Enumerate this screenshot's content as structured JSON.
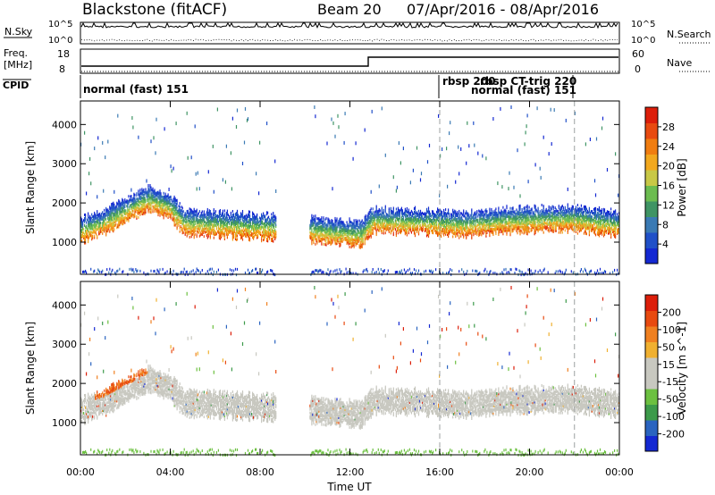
{
  "header": {
    "station": "Blackstone (fitACF)",
    "beam": "Beam 20",
    "date_range": "07/Apr/2016 - 08/Apr/2016"
  },
  "left_labels": {
    "nsky": "N.Sky",
    "nsky_hi": "10^5",
    "nsky_lo": "10^0",
    "freq_line1": "Freq.",
    "freq_line2": "[MHz]",
    "freq_hi": "18",
    "freq_lo": "8",
    "cpid": "CPID"
  },
  "right_labels": {
    "nsearch": "N.Search",
    "nsearch_hi": "10^5",
    "nsearch_lo": "10^0",
    "nave": "Nave",
    "nave_hi": "60",
    "nave_lo": "0"
  },
  "cpid_labels": [
    {
      "text": "normal (fast) 151",
      "time_h": 0.1
    },
    {
      "text": "rbsp 200",
      "time_h": 16.0
    },
    {
      "text": "rbsp CT-trig 220",
      "time_h": 17.2
    },
    {
      "text": "normal (fast) 151",
      "time_h": 17.0
    }
  ],
  "chart_data": [
    {
      "type": "heatmap",
      "name": "power",
      "ylabel": "Slant Range [km]",
      "yticks": [
        "1000",
        "2000",
        "3000",
        "4000"
      ],
      "ylim": [
        180,
        4600
      ],
      "xlim": [
        0,
        24
      ],
      "colorbar": {
        "label": "Power [dB]",
        "ticks": [
          "4",
          "8",
          "12",
          "16",
          "20",
          "24",
          "28"
        ],
        "colors": [
          "#1428d2",
          "#2050c8",
          "#3a7ab4",
          "#3f9464",
          "#6cbc50",
          "#c8c846",
          "#f2a81e",
          "#f07d10",
          "#e84a10",
          "#dc1e0a"
        ]
      },
      "layers": [
        {
          "desc": "main band",
          "t_start": 0,
          "t_end": 24,
          "center_km": [
            1300,
            1500,
            1800,
            2100,
            1900,
            1500,
            1350,
            1200,
            1550,
            1500,
            1450,
            1550,
            1600,
            1450
          ],
          "knots_h": [
            0,
            1,
            2,
            3,
            4,
            4.6,
            9.5,
            12.5,
            13,
            16,
            17,
            19,
            22,
            24
          ]
        }
      ]
    },
    {
      "type": "heatmap",
      "name": "velocity",
      "ylabel": "Slant Range [km]",
      "xlabel": "Time UT",
      "xticks": [
        "00:00",
        "04:00",
        "08:00",
        "12:00",
        "16:00",
        "20:00",
        "00:00"
      ],
      "yticks": [
        "1000",
        "2000",
        "3000",
        "4000"
      ],
      "ylim": [
        180,
        4600
      ],
      "xlim": [
        0,
        24
      ],
      "colorbar": {
        "label": "Velocity [m s^-1]",
        "ticks": [
          "200",
          "100",
          "50",
          "15",
          "-15",
          "-50",
          "-100",
          "-200"
        ],
        "colors": [
          "#1428d2",
          "#2a64c0",
          "#3c9a4a",
          "#6cc040",
          "#c8c8c0",
          "#c8c8c0",
          "#f0b030",
          "#f08020",
          "#e84a10",
          "#dc1e0a"
        ]
      }
    }
  ]
}
